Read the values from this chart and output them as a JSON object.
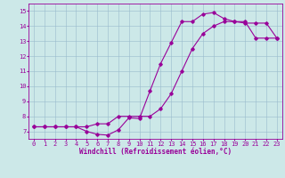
{
  "xlabel": "Windchill (Refroidissement éolien,°C)",
  "background_color": "#cce8e8",
  "line_color": "#990099",
  "xlim": [
    -0.5,
    23.5
  ],
  "ylim": [
    6.5,
    15.5
  ],
  "xticks": [
    0,
    1,
    2,
    3,
    4,
    5,
    6,
    7,
    8,
    9,
    10,
    11,
    12,
    13,
    14,
    15,
    16,
    17,
    18,
    19,
    20,
    21,
    22,
    23
  ],
  "yticks": [
    7,
    8,
    9,
    10,
    11,
    12,
    13,
    14,
    15
  ],
  "line1_x": [
    0,
    1,
    2,
    3,
    4,
    5,
    6,
    7,
    8,
    9,
    10,
    11,
    12,
    13,
    14,
    15,
    16,
    17,
    18,
    19,
    20,
    21,
    22,
    23
  ],
  "line1_y": [
    7.3,
    7.3,
    7.3,
    7.3,
    7.3,
    7.0,
    6.8,
    6.75,
    7.1,
    7.9,
    7.85,
    9.7,
    11.5,
    12.9,
    14.3,
    14.3,
    14.8,
    14.9,
    14.5,
    14.3,
    14.2,
    14.2,
    14.2,
    13.2
  ],
  "line2_x": [
    0,
    1,
    2,
    3,
    4,
    5,
    6,
    7,
    8,
    9,
    10,
    11,
    12,
    13,
    14,
    15,
    16,
    17,
    18,
    19,
    20,
    21,
    22,
    23
  ],
  "line2_y": [
    7.3,
    7.3,
    7.3,
    7.3,
    7.3,
    7.3,
    7.5,
    7.5,
    8.0,
    8.0,
    8.0,
    8.0,
    8.5,
    9.5,
    11.0,
    12.5,
    13.5,
    14.0,
    14.3,
    14.3,
    14.3,
    13.2,
    13.2,
    13.2
  ],
  "grid_color": "#99bbcc",
  "marker": "D",
  "markersize": 1.8,
  "linewidth": 0.8,
  "xlabel_fontsize": 5.5,
  "tick_fontsize": 5.0
}
